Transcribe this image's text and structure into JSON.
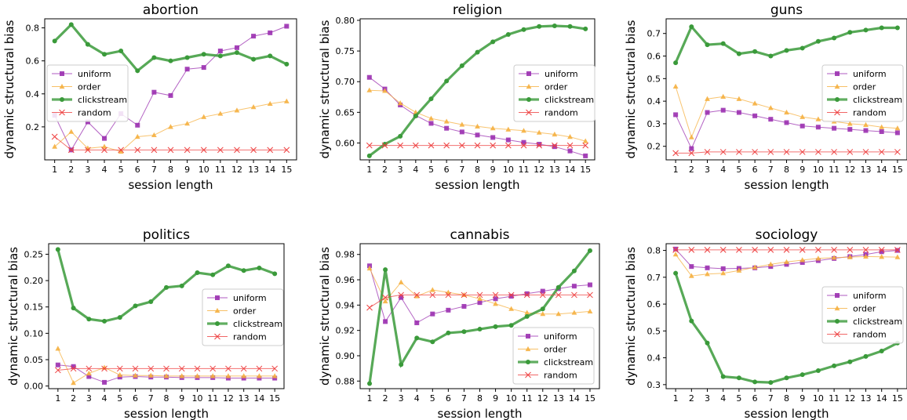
{
  "chart_data": [
    {
      "type": "line",
      "title": "abortion",
      "xlabel": "session length",
      "ylabel": "dynamic structural bias",
      "x": [
        1,
        2,
        3,
        4,
        5,
        6,
        7,
        8,
        9,
        10,
        11,
        12,
        13,
        14,
        15
      ],
      "xlim": [
        0.4,
        15.6
      ],
      "ylim": [
        0.0,
        0.855
      ],
      "yticks": [
        0.2,
        0.4,
        0.6,
        0.8
      ],
      "yticks_text": [
        "0.2",
        "0.4",
        "0.6",
        "0.8"
      ],
      "legend": "center-left",
      "grid": false,
      "series": [
        {
          "name": "uniform",
          "values": [
            0.27,
            0.06,
            0.23,
            0.13,
            0.28,
            0.21,
            0.41,
            0.39,
            0.55,
            0.56,
            0.66,
            0.68,
            0.75,
            0.77,
            0.81
          ]
        },
        {
          "name": "order",
          "values": [
            0.08,
            0.17,
            0.07,
            0.08,
            0.05,
            0.14,
            0.15,
            0.2,
            0.22,
            0.26,
            0.28,
            0.3,
            0.32,
            0.34,
            0.355
          ]
        },
        {
          "name": "clickstream",
          "values": [
            0.72,
            0.82,
            0.7,
            0.64,
            0.66,
            0.54,
            0.62,
            0.6,
            0.62,
            0.64,
            0.63,
            0.65,
            0.61,
            0.63,
            0.58
          ]
        },
        {
          "name": "random",
          "values": [
            0.14,
            0.06,
            0.06,
            0.06,
            0.06,
            0.06,
            0.06,
            0.06,
            0.06,
            0.06,
            0.06,
            0.06,
            0.06,
            0.06,
            0.06
          ]
        }
      ]
    },
    {
      "type": "line",
      "title": "religion",
      "xlabel": "session length",
      "ylabel": "dynamic structural bias",
      "x": [
        1,
        2,
        3,
        4,
        5,
        6,
        7,
        8,
        9,
        10,
        11,
        12,
        13,
        14,
        15
      ],
      "xlim": [
        0.4,
        15.6
      ],
      "ylim": [
        0.5725,
        0.8025
      ],
      "yticks": [
        0.6,
        0.65,
        0.7,
        0.75,
        0.8
      ],
      "yticks_text": [
        "0.60",
        "0.65",
        "0.70",
        "0.75",
        "0.80"
      ],
      "legend": "center-right",
      "grid": false,
      "series": [
        {
          "name": "uniform",
          "values": [
            0.707,
            0.688,
            0.662,
            0.645,
            0.632,
            0.624,
            0.618,
            0.613,
            0.609,
            0.605,
            0.601,
            0.598,
            0.594,
            0.587,
            0.579
          ]
        },
        {
          "name": "order",
          "values": [
            0.686,
            0.685,
            0.665,
            0.65,
            0.64,
            0.635,
            0.63,
            0.627,
            0.624,
            0.622,
            0.62,
            0.617,
            0.614,
            0.61,
            0.603
          ]
        },
        {
          "name": "clickstream",
          "values": [
            0.579,
            0.598,
            0.611,
            0.644,
            0.672,
            0.701,
            0.726,
            0.748,
            0.765,
            0.777,
            0.785,
            0.79,
            0.791,
            0.79,
            0.786
          ]
        },
        {
          "name": "random",
          "values": [
            0.596,
            0.596,
            0.596,
            0.596,
            0.596,
            0.596,
            0.596,
            0.596,
            0.596,
            0.596,
            0.596,
            0.596,
            0.596,
            0.596,
            0.596
          ]
        }
      ]
    },
    {
      "type": "line",
      "title": "guns",
      "xlabel": "session length",
      "ylabel": "dynamic structural bias",
      "x": [
        1,
        2,
        3,
        4,
        5,
        6,
        7,
        8,
        9,
        10,
        11,
        12,
        13,
        14,
        15
      ],
      "xlim": [
        0.4,
        15.6
      ],
      "ylim": [
        0.14,
        0.765
      ],
      "yticks": [
        0.2,
        0.3,
        0.4,
        0.5,
        0.6,
        0.7
      ],
      "yticks_text": [
        "0.2",
        "0.3",
        "0.4",
        "0.5",
        "0.6",
        "0.7"
      ],
      "legend": "center-right",
      "grid": false,
      "series": [
        {
          "name": "uniform",
          "values": [
            0.34,
            0.19,
            0.35,
            0.36,
            0.35,
            0.335,
            0.32,
            0.305,
            0.29,
            0.285,
            0.28,
            0.275,
            0.27,
            0.265,
            0.26
          ]
        },
        {
          "name": "order",
          "values": [
            0.465,
            0.24,
            0.41,
            0.42,
            0.41,
            0.39,
            0.37,
            0.35,
            0.33,
            0.32,
            0.31,
            0.3,
            0.295,
            0.285,
            0.28
          ]
        },
        {
          "name": "clickstream",
          "values": [
            0.57,
            0.73,
            0.65,
            0.655,
            0.61,
            0.62,
            0.6,
            0.625,
            0.635,
            0.665,
            0.68,
            0.705,
            0.715,
            0.725,
            0.725
          ]
        },
        {
          "name": "random",
          "values": [
            0.17,
            0.17,
            0.175,
            0.175,
            0.175,
            0.175,
            0.175,
            0.175,
            0.175,
            0.175,
            0.175,
            0.175,
            0.175,
            0.175,
            0.175
          ]
        }
      ]
    },
    {
      "type": "line",
      "title": "politics",
      "xlabel": "session length",
      "ylabel": "dynamic structural bias",
      "x": [
        1,
        2,
        3,
        4,
        5,
        6,
        7,
        8,
        9,
        10,
        11,
        12,
        13,
        14,
        15
      ],
      "xlim": [
        0.4,
        15.6
      ],
      "ylim": [
        -0.005,
        0.27
      ],
      "yticks": [
        0.0,
        0.05,
        0.1,
        0.15,
        0.2,
        0.25
      ],
      "yticks_text": [
        "0.00",
        "0.05",
        "0.10",
        "0.15",
        "0.20",
        "0.25"
      ],
      "legend": "center-right",
      "grid": false,
      "series": [
        {
          "name": "uniform",
          "values": [
            0.04,
            0.037,
            0.018,
            0.007,
            0.017,
            0.018,
            0.017,
            0.017,
            0.016,
            0.016,
            0.016,
            0.015,
            0.015,
            0.015,
            0.015
          ]
        },
        {
          "name": "order",
          "values": [
            0.071,
            0.006,
            0.024,
            0.035,
            0.021,
            0.02,
            0.02,
            0.019,
            0.019,
            0.019,
            0.019,
            0.019,
            0.019,
            0.019,
            0.019
          ]
        },
        {
          "name": "clickstream",
          "values": [
            0.259,
            0.148,
            0.127,
            0.123,
            0.13,
            0.152,
            0.16,
            0.187,
            0.19,
            0.215,
            0.211,
            0.228,
            0.219,
            0.224,
            0.213
          ]
        },
        {
          "name": "random",
          "values": [
            0.03,
            0.033,
            0.033,
            0.033,
            0.033,
            0.033,
            0.033,
            0.033,
            0.033,
            0.033,
            0.033,
            0.033,
            0.033,
            0.033,
            0.033
          ]
        }
      ]
    },
    {
      "type": "line",
      "title": "cannabis",
      "xlabel": "session length",
      "ylabel": "dynamic structural bias",
      "x": [
        1,
        2,
        3,
        4,
        5,
        6,
        7,
        8,
        9,
        10,
        11,
        12,
        13,
        14,
        15
      ],
      "xlim": [
        0.4,
        15.6
      ],
      "ylim": [
        0.874,
        0.9885
      ],
      "yticks": [
        0.88,
        0.9,
        0.92,
        0.94,
        0.96,
        0.98
      ],
      "yticks_text": [
        "0.88",
        "0.90",
        "0.92",
        "0.94",
        "0.96",
        "0.98"
      ],
      "legend": "lower-right",
      "grid": false,
      "series": [
        {
          "name": "uniform",
          "values": [
            0.971,
            0.927,
            0.946,
            0.926,
            0.933,
            0.936,
            0.939,
            0.942,
            0.945,
            0.947,
            0.949,
            0.951,
            0.953,
            0.955,
            0.956
          ]
        },
        {
          "name": "order",
          "values": [
            0.969,
            0.943,
            0.958,
            0.947,
            0.952,
            0.95,
            0.948,
            0.945,
            0.941,
            0.937,
            0.934,
            0.933,
            0.933,
            0.934,
            0.935
          ]
        },
        {
          "name": "clickstream",
          "values": [
            0.878,
            0.968,
            0.893,
            0.914,
            0.911,
            0.918,
            0.919,
            0.921,
            0.923,
            0.924,
            0.931,
            0.937,
            0.954,
            0.967,
            0.983
          ]
        },
        {
          "name": "random",
          "values": [
            0.938,
            0.946,
            0.948,
            0.948,
            0.948,
            0.948,
            0.948,
            0.948,
            0.948,
            0.948,
            0.948,
            0.948,
            0.948,
            0.948,
            0.948
          ]
        }
      ]
    },
    {
      "type": "line",
      "title": "sociology",
      "xlabel": "session length",
      "ylabel": "dynamic structural bias",
      "x": [
        1,
        2,
        3,
        4,
        5,
        6,
        7,
        8,
        9,
        10,
        11,
        12,
        13,
        14,
        15
      ],
      "xlim": [
        0.4,
        15.6
      ],
      "ylim": [
        0.285,
        0.825
      ],
      "yticks": [
        0.3,
        0.4,
        0.5,
        0.6,
        0.7,
        0.8
      ],
      "yticks_text": [
        "0.3",
        "0.4",
        "0.5",
        "0.6",
        "0.7",
        "0.8"
      ],
      "legend": "center-right",
      "grid": false,
      "series": [
        {
          "name": "uniform",
          "values": [
            0.805,
            0.74,
            0.735,
            0.732,
            0.733,
            0.735,
            0.74,
            0.748,
            0.755,
            0.762,
            0.77,
            0.777,
            0.785,
            0.795,
            0.8
          ]
        },
        {
          "name": "order",
          "values": [
            0.785,
            0.705,
            0.712,
            0.715,
            0.725,
            0.737,
            0.748,
            0.757,
            0.764,
            0.77,
            0.773,
            0.775,
            0.777,
            0.776,
            0.775
          ]
        },
        {
          "name": "clickstream",
          "values": [
            0.715,
            0.537,
            0.455,
            0.33,
            0.325,
            0.31,
            0.308,
            0.325,
            0.337,
            0.352,
            0.37,
            0.385,
            0.405,
            0.425,
            0.455
          ]
        },
        {
          "name": "random",
          "values": [
            0.802,
            0.802,
            0.802,
            0.802,
            0.802,
            0.802,
            0.802,
            0.802,
            0.802,
            0.802,
            0.802,
            0.802,
            0.802,
            0.802,
            0.802
          ]
        }
      ]
    }
  ],
  "series_styles": {
    "uniform": {
      "color": "#9b30b0",
      "marker": "square"
    },
    "order": {
      "color": "#f5b040",
      "marker": "triangle"
    },
    "clickstream": {
      "color": "#3a9a3a",
      "marker": "circle"
    },
    "random": {
      "color": "#ee4040",
      "marker": "x"
    }
  }
}
